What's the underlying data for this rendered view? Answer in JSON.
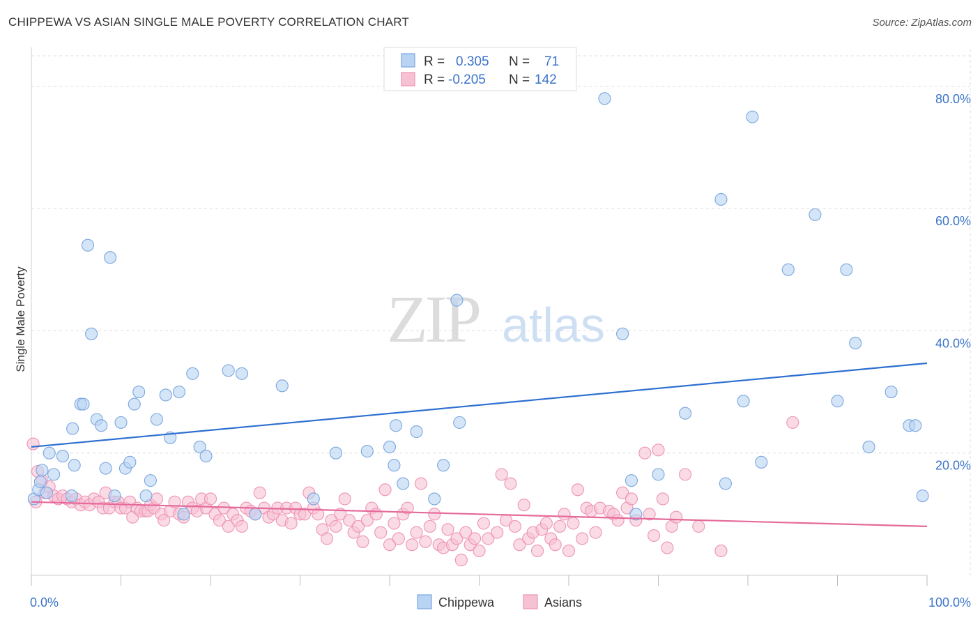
{
  "title": "CHIPPEWA VS ASIAN SINGLE MALE POVERTY CORRELATION CHART",
  "source": "Source: ZipAtlas.com",
  "watermark": {
    "zip": "ZIP",
    "atlas": "atlas"
  },
  "colors": {
    "chippewa_fill": "#b9d3f3",
    "chippewa_stroke": "#7aa6de",
    "chippewa_line": "#2d6fd1",
    "asians_fill": "#f6c1d3",
    "asians_stroke": "#ee94b4",
    "asians_line": "#e56a99",
    "grid": "#dddddd",
    "tick_text": "#3b74c9"
  },
  "legend": {
    "rows": [
      {
        "r_label": "R =",
        "r_value": "0.305",
        "n_label": "N =",
        "n_value": "71",
        "series": "Chippewa"
      },
      {
        "r_label": "R =",
        "r_value": "-0.205",
        "n_label": "N =",
        "n_value": "142",
        "series": "Asians"
      }
    ]
  },
  "chart_data": {
    "type": "scatter",
    "title": "CHIPPEWA VS ASIAN SINGLE MALE POVERTY CORRELATION CHART",
    "xlabel": "",
    "ylabel": "Single Male Poverty",
    "xlim": [
      0,
      100
    ],
    "ylim": [
      0,
      85
    ],
    "x_tick_labels": [
      "0.0%",
      "100.0%"
    ],
    "y_ticks": [
      20,
      40,
      60,
      80
    ],
    "y_tick_labels": [
      "20.0%",
      "40.0%",
      "60.0%",
      "80.0%"
    ],
    "grid": true,
    "legend_position": "top-center",
    "series": [
      {
        "name": "Chippewa",
        "trend": {
          "x": [
            0,
            100
          ],
          "y": [
            21.0,
            34.7
          ]
        },
        "points": [
          [
            0.3,
            12.5
          ],
          [
            0.8,
            14
          ],
          [
            1,
            15.3
          ],
          [
            1.2,
            17.2
          ],
          [
            1.7,
            13.5
          ],
          [
            2,
            20
          ],
          [
            2.5,
            16.5
          ],
          [
            3.5,
            19.5
          ],
          [
            4.5,
            13
          ],
          [
            4.6,
            24
          ],
          [
            4.8,
            18
          ],
          [
            5.5,
            28
          ],
          [
            5.8,
            28
          ],
          [
            6.3,
            54
          ],
          [
            6.7,
            39.5
          ],
          [
            7.3,
            25.5
          ],
          [
            7.8,
            24.5
          ],
          [
            8.3,
            17.5
          ],
          [
            8.8,
            52
          ],
          [
            9.3,
            13
          ],
          [
            10,
            25
          ],
          [
            10.5,
            17.5
          ],
          [
            11,
            18.5
          ],
          [
            11.5,
            28
          ],
          [
            12,
            30
          ],
          [
            12.8,
            13
          ],
          [
            13.3,
            15.5
          ],
          [
            14,
            25.5
          ],
          [
            15,
            29.5
          ],
          [
            15.5,
            22.5
          ],
          [
            16.5,
            30
          ],
          [
            17,
            10
          ],
          [
            18,
            33
          ],
          [
            18.8,
            21
          ],
          [
            19.5,
            19.5
          ],
          [
            22,
            33.5
          ],
          [
            23.5,
            33
          ],
          [
            25,
            10
          ],
          [
            28,
            31
          ],
          [
            31.5,
            12.5
          ],
          [
            34,
            20
          ],
          [
            37.5,
            20.3
          ],
          [
            40,
            21
          ],
          [
            40.5,
            18
          ],
          [
            40.7,
            24.5
          ],
          [
            41.5,
            15
          ],
          [
            43,
            23.5
          ],
          [
            45,
            12.5
          ],
          [
            46,
            18
          ],
          [
            47.5,
            45
          ],
          [
            47.8,
            25
          ],
          [
            64,
            78
          ],
          [
            66,
            39.5
          ],
          [
            67,
            15.5
          ],
          [
            67.5,
            10
          ],
          [
            70,
            16.5
          ],
          [
            73,
            26.5
          ],
          [
            77,
            61.5
          ],
          [
            77.5,
            15
          ],
          [
            79.5,
            28.5
          ],
          [
            80.5,
            75
          ],
          [
            81.5,
            18.5
          ],
          [
            84.5,
            50
          ],
          [
            87.5,
            59
          ],
          [
            90,
            28.5
          ],
          [
            91,
            50
          ],
          [
            92,
            38
          ],
          [
            93.5,
            21
          ],
          [
            96,
            30
          ],
          [
            98,
            24.5
          ],
          [
            98.7,
            24.5
          ],
          [
            99.5,
            13
          ]
        ]
      },
      {
        "name": "Asians",
        "trend": {
          "x": [
            0,
            100
          ],
          "y": [
            12.0,
            8.0
          ]
        },
        "points": [
          [
            0.2,
            21.5
          ],
          [
            0.7,
            17
          ],
          [
            1.2,
            15.5
          ],
          [
            1.5,
            13.5
          ],
          [
            2,
            14.5
          ],
          [
            2.5,
            13
          ],
          [
            3,
            12.5
          ],
          [
            3.5,
            13
          ],
          [
            4,
            12.5
          ],
          [
            4.5,
            12
          ],
          [
            5,
            12.5
          ],
          [
            5.5,
            11.5
          ],
          [
            6,
            12
          ],
          [
            6.5,
            11.5
          ],
          [
            7,
            12.5
          ],
          [
            7.5,
            12
          ],
          [
            8,
            11
          ],
          [
            8.3,
            13.5
          ],
          [
            8.7,
            11
          ],
          [
            9.3,
            12
          ],
          [
            9.7,
            12
          ],
          [
            10,
            11
          ],
          [
            10.5,
            11
          ],
          [
            11,
            12
          ],
          [
            11.3,
            9.5
          ],
          [
            11.8,
            11
          ],
          [
            12.2,
            10.5
          ],
          [
            12.7,
            10.5
          ],
          [
            13,
            10.5
          ],
          [
            13.3,
            11.5
          ],
          [
            13.7,
            11
          ],
          [
            14,
            12.5
          ],
          [
            14.5,
            10
          ],
          [
            14.8,
            9
          ],
          [
            15.5,
            10.5
          ],
          [
            16,
            12
          ],
          [
            16.5,
            10
          ],
          [
            17,
            9.5
          ],
          [
            17.5,
            12
          ],
          [
            18,
            11
          ],
          [
            18.5,
            10.5
          ],
          [
            19,
            12.5
          ],
          [
            19.5,
            11
          ],
          [
            20,
            12.5
          ],
          [
            20.5,
            10
          ],
          [
            21,
            9
          ],
          [
            21.5,
            11
          ],
          [
            22,
            8
          ],
          [
            22.5,
            10
          ],
          [
            23,
            9
          ],
          [
            23.5,
            8
          ],
          [
            24,
            11
          ],
          [
            24.5,
            10.5
          ],
          [
            25,
            10
          ],
          [
            25.5,
            13.5
          ],
          [
            26,
            11
          ],
          [
            26.5,
            9.5
          ],
          [
            27,
            10
          ],
          [
            27.5,
            11
          ],
          [
            28,
            9
          ],
          [
            28.5,
            11
          ],
          [
            29,
            8.5
          ],
          [
            29.5,
            11
          ],
          [
            30,
            10
          ],
          [
            30.5,
            10
          ],
          [
            31,
            13.5
          ],
          [
            31.5,
            11
          ],
          [
            32,
            10
          ],
          [
            32.5,
            7.5
          ],
          [
            33,
            6
          ],
          [
            33.5,
            9
          ],
          [
            34,
            8
          ],
          [
            34.5,
            10
          ],
          [
            35,
            12.5
          ],
          [
            35.5,
            9
          ],
          [
            36,
            7
          ],
          [
            36.5,
            8
          ],
          [
            37,
            5.5
          ],
          [
            37.5,
            9
          ],
          [
            38,
            11
          ],
          [
            38.5,
            10
          ],
          [
            39,
            7
          ],
          [
            39.5,
            14
          ],
          [
            40,
            5
          ],
          [
            40.5,
            8.5
          ],
          [
            41,
            6
          ],
          [
            41.5,
            10
          ],
          [
            42,
            11
          ],
          [
            42.5,
            5
          ],
          [
            43,
            7
          ],
          [
            43.5,
            15
          ],
          [
            44,
            5.5
          ],
          [
            44.5,
            8
          ],
          [
            45,
            10
          ],
          [
            45.5,
            5
          ],
          [
            46,
            4.5
          ],
          [
            46.5,
            7.5
          ],
          [
            47,
            5
          ],
          [
            47.5,
            6
          ],
          [
            48,
            2.5
          ],
          [
            48.5,
            7
          ],
          [
            49,
            5
          ],
          [
            49.5,
            6
          ],
          [
            50,
            4
          ],
          [
            50.5,
            8.5
          ],
          [
            51,
            6
          ],
          [
            52,
            7
          ],
          [
            52.5,
            16.5
          ],
          [
            53,
            9
          ],
          [
            53.5,
            15
          ],
          [
            54,
            8
          ],
          [
            54.5,
            5
          ],
          [
            55,
            11.5
          ],
          [
            55.5,
            6
          ],
          [
            56,
            7
          ],
          [
            56.5,
            4
          ],
          [
            57,
            7.5
          ],
          [
            57.5,
            8.5
          ],
          [
            58,
            6
          ],
          [
            58.5,
            5
          ],
          [
            59,
            8
          ],
          [
            59.5,
            10
          ],
          [
            60,
            4
          ],
          [
            60.5,
            8.5
          ],
          [
            61,
            14
          ],
          [
            61.5,
            6
          ],
          [
            62,
            11
          ],
          [
            62.5,
            10.5
          ],
          [
            63,
            7
          ],
          [
            63.5,
            11
          ],
          [
            64.5,
            10.5
          ],
          [
            65,
            10
          ],
          [
            65.5,
            9
          ],
          [
            66,
            13.5
          ],
          [
            66.5,
            11
          ],
          [
            67,
            12.5
          ],
          [
            67.5,
            9
          ],
          [
            68.5,
            20
          ],
          [
            69,
            10
          ],
          [
            69.5,
            6.5
          ],
          [
            70,
            20.5
          ],
          [
            70.5,
            12.5
          ],
          [
            71,
            4.5
          ],
          [
            71.5,
            8
          ],
          [
            72,
            9.5
          ],
          [
            73,
            16.5
          ],
          [
            74.5,
            8
          ],
          [
            77,
            4
          ],
          [
            85,
            25
          ],
          [
            0.5,
            12
          ]
        ]
      }
    ]
  },
  "bottom_legend": [
    {
      "label": "Chippewa"
    },
    {
      "label": "Asians"
    }
  ]
}
